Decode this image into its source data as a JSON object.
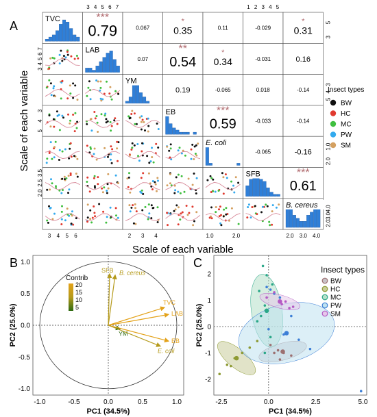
{
  "panel_labels": {
    "a": "A",
    "b": "B",
    "c": "C"
  },
  "colors": {
    "BW": "#111111",
    "HC": "#e03a2f",
    "MC": "#3fbf3f",
    "PW": "#33aaee",
    "SM": "#d4a060",
    "hist": "#2f7fd8",
    "curve": "#d88a9a",
    "star": "#b06a6e",
    "contrib_low": "#2e6b12",
    "contrib_mid": "#b59a1b",
    "contrib_high": "#e3a21a"
  },
  "chart_data": [
    {
      "type": "scatter",
      "subtype": "correlation-matrix",
      "variables": [
        "TVC",
        "LAB",
        "YM",
        "EB",
        "E. coli",
        "SFB",
        "B. cereus"
      ],
      "diag_labels": [
        "TVC",
        "LAB",
        "YM",
        "EB",
        "E. coli",
        "SFB",
        "B. cereus"
      ],
      "xlabel": "Scale of each variable",
      "ylabel": "Scale of each variable",
      "top_ticks": [
        [
          "3",
          "4",
          "5",
          "6",
          "7"
        ],
        [],
        [
          "1",
          "2",
          "3",
          "4",
          "5"
        ],
        [],
        [
          "2.0",
          "3.0",
          "4.0"
        ]
      ],
      "right_ticks": [
        [
          "5",
          "3"
        ],
        [
          "3",
          "4",
          "5"
        ],
        [
          "1.0",
          "2.0"
        ],
        [],
        [
          "3.0",
          "4.0"
        ],
        [],
        []
      ],
      "right_ticks_v": [
        [
          "5",
          "3"
        ],
        [],
        [
          "3",
          "4",
          "5"
        ],
        [],
        [
          "1.0",
          "2.0"
        ],
        [],
        [
          "4.0",
          "3.0",
          "2.0"
        ]
      ],
      "left_ticks": [
        [],
        [
          "7",
          "6",
          "5",
          "4",
          "3"
        ],
        [],
        [
          "3",
          "4",
          "5"
        ],
        [],
        [
          "3.5",
          "2.5",
          "2.0"
        ],
        []
      ],
      "bottom_ticks": [
        [
          "3",
          "4",
          "5",
          "6"
        ],
        [],
        [
          "2",
          "3",
          "4"
        ],
        [],
        [
          "1.0",
          "2.0"
        ],
        [],
        [
          "2.0",
          "3.0",
          "4.0"
        ]
      ],
      "correlations": [
        {
          "row": 0,
          "col": 1,
          "r": "0.79",
          "sig": "***"
        },
        {
          "row": 0,
          "col": 2,
          "r": "0.067",
          "sig": ""
        },
        {
          "row": 0,
          "col": 3,
          "r": "0.35",
          "sig": "*"
        },
        {
          "row": 0,
          "col": 4,
          "r": "0.11",
          "sig": ""
        },
        {
          "row": 0,
          "col": 5,
          "r": "-0.029",
          "sig": ""
        },
        {
          "row": 0,
          "col": 6,
          "r": "0.31",
          "sig": "*"
        },
        {
          "row": 1,
          "col": 2,
          "r": "0.07",
          "sig": ""
        },
        {
          "row": 1,
          "col": 3,
          "r": "0.54",
          "sig": "**"
        },
        {
          "row": 1,
          "col": 4,
          "r": "0.34",
          "sig": "*"
        },
        {
          "row": 1,
          "col": 5,
          "r": "-0.031",
          "sig": ""
        },
        {
          "row": 1,
          "col": 6,
          "r": "0.16",
          "sig": ""
        },
        {
          "row": 2,
          "col": 3,
          "r": "0.19",
          "sig": ""
        },
        {
          "row": 2,
          "col": 4,
          "r": "-0.065",
          "sig": ""
        },
        {
          "row": 2,
          "col": 5,
          "r": "0.018",
          "sig": ""
        },
        {
          "row": 2,
          "col": 6,
          "r": "-0.14",
          "sig": ""
        },
        {
          "row": 3,
          "col": 4,
          "r": "0.59",
          "sig": "***"
        },
        {
          "row": 3,
          "col": 5,
          "r": "-0.033",
          "sig": ""
        },
        {
          "row": 3,
          "col": 6,
          "r": "-0.14",
          "sig": ""
        },
        {
          "row": 4,
          "col": 5,
          "r": "-0.065",
          "sig": ""
        },
        {
          "row": 4,
          "col": 6,
          "r": "-0.16",
          "sig": ""
        },
        {
          "row": 5,
          "col": 6,
          "r": "0.61",
          "sig": "***"
        }
      ],
      "histograms": [
        [
          1,
          2,
          3,
          5,
          8,
          10,
          9,
          6,
          3,
          2
        ],
        [
          2,
          2,
          1,
          3,
          5,
          7,
          9,
          10,
          6,
          3
        ],
        [
          1,
          3,
          9,
          10,
          5,
          3,
          1,
          0,
          0,
          0
        ],
        [
          10,
          5,
          3,
          2,
          1,
          1,
          1,
          0,
          1,
          0
        ],
        [
          10,
          1,
          0,
          0,
          0,
          0,
          0,
          0,
          0,
          1
        ],
        [
          5,
          8,
          9,
          10,
          8,
          7,
          4,
          2,
          1,
          1
        ],
        [
          7,
          6,
          4,
          3,
          2,
          2,
          4,
          5,
          6,
          7
        ]
      ],
      "legend": {
        "title": "Insect types",
        "items": [
          "BW",
          "HC",
          "MC",
          "PW",
          "SM"
        ]
      }
    },
    {
      "type": "scatter",
      "subtype": "pca-variable-biplot",
      "xlabel": "PC1 (34.5%)",
      "ylabel": "PC2 (25.0%)",
      "xlim": [
        -1.1,
        1.1
      ],
      "ylim": [
        -1.1,
        1.1
      ],
      "xticks": [
        "-1.0",
        "-0.5",
        "0.0",
        "0.5",
        "1.0"
      ],
      "yticks": [
        "1.0",
        "0.5",
        "0.0",
        "-0.5",
        "-1.0"
      ],
      "legend_title": "Contrib",
      "legend_ticks": [
        "20",
        "15",
        "10",
        "5"
      ],
      "vectors": [
        {
          "label": "SFB",
          "x": 0.02,
          "y": 0.81,
          "contrib": 14
        },
        {
          "label": "B. cereus",
          "x": 0.1,
          "y": 0.79,
          "contrib": 13
        },
        {
          "label": "TVC",
          "x": 0.82,
          "y": 0.28,
          "contrib": 18
        },
        {
          "label": "LAB",
          "x": 0.88,
          "y": 0.17,
          "contrib": 19
        },
        {
          "label": "YM",
          "x": 0.17,
          "y": -0.06,
          "contrib": 3
        },
        {
          "label": "EB",
          "x": 0.88,
          "y": -0.25,
          "contrib": 17
        },
        {
          "label": "E. coli",
          "x": 0.76,
          "y": -0.33,
          "contrib": 13
        }
      ]
    },
    {
      "type": "scatter",
      "subtype": "pca-individuals",
      "xlabel": "PC1 (34.5%)",
      "ylabel": "PC2 (25.0%)",
      "xlim": [
        -2.9,
        5.2
      ],
      "ylim": [
        -2.6,
        2.7
      ],
      "xticks": [
        "-2.5",
        "0.0",
        "2.5",
        "5.0"
      ],
      "xticks_v": [
        -2.5,
        0.0,
        2.5,
        5.0
      ],
      "yticks": [
        "2",
        "1",
        "0",
        "-1",
        "-2"
      ],
      "yticks_v": [
        2,
        1,
        0,
        -1,
        -2
      ],
      "legend": {
        "title": "Insect types",
        "items": [
          "BW",
          "HC",
          "MC",
          "PW",
          "SM"
        ]
      },
      "groups": [
        {
          "name": "BW",
          "fill": "#c8c2c6",
          "ellipse": {
            "cx": 0.75,
            "cy": -0.95,
            "rx": 1.3,
            "ry": 0.32,
            "angle": -15
          },
          "points": [
            [
              0.1,
              -0.7
            ],
            [
              0.5,
              -0.9
            ],
            [
              0.8,
              -1.0
            ],
            [
              1.2,
              -1.1
            ],
            [
              0.6,
              -1.25
            ],
            [
              0.3,
              -1.0
            ]
          ],
          "centroid": [
            0.75,
            -0.95
          ]
        },
        {
          "name": "HC",
          "fill": "#c9cc9a",
          "ellipse": {
            "cx": -1.7,
            "cy": -1.2,
            "rx": 1.25,
            "ry": 0.35,
            "angle": 40
          },
          "points": [
            [
              -2.6,
              -1.8
            ],
            [
              -2.2,
              -1.45
            ],
            [
              -1.8,
              -1.2
            ],
            [
              -1.4,
              -1.0
            ],
            [
              -1.0,
              -0.8
            ],
            [
              -0.6,
              -0.55
            ],
            [
              -2.0,
              -1.5
            ]
          ],
          "centroid": [
            -1.7,
            -1.2
          ]
        },
        {
          "name": "MC",
          "fill": "#b5e0c9",
          "ellipse": {
            "cx": -0.1,
            "cy": 0.6,
            "rx": 1.95,
            "ry": 0.58,
            "angle": 82
          },
          "points": [
            [
              -0.3,
              2.3
            ],
            [
              -0.1,
              1.95
            ],
            [
              0.2,
              1.6
            ],
            [
              -0.5,
              1.35
            ],
            [
              -0.2,
              0.8
            ],
            [
              -0.4,
              0.4
            ],
            [
              -0.6,
              0.2
            ],
            [
              0.1,
              -0.4
            ],
            [
              -0.2,
              -1.0
            ]
          ],
          "centroid": [
            -0.1,
            0.6
          ]
        },
        {
          "name": "PW",
          "fill": "#bfe2f0",
          "ellipse": {
            "cx": 0.95,
            "cy": -0.25,
            "rx": 2.6,
            "ry": 1.1,
            "angle": -15
          },
          "points": [
            [
              -0.1,
              1.5
            ],
            [
              0.3,
              1.25
            ],
            [
              0.1,
              1.4
            ],
            [
              0.6,
              1.1
            ],
            [
              1.2,
              0.4
            ],
            [
              0.8,
              -0.3
            ],
            [
              1.6,
              -0.5
            ],
            [
              2.2,
              -0.85
            ],
            [
              0.0,
              -0.1
            ],
            [
              4.9,
              -2.45
            ]
          ],
          "centroid": [
            0.95,
            -0.25
          ]
        },
        {
          "name": "SM",
          "fill": "#e6c8ea",
          "ellipse": {
            "cx": 0.6,
            "cy": 0.95,
            "rx": 1.1,
            "ry": 0.25,
            "angle": 15
          },
          "points": [
            [
              -0.1,
              1.1
            ],
            [
              0.3,
              1.3
            ],
            [
              0.7,
              0.85
            ],
            [
              1.3,
              0.75
            ],
            [
              1.1,
              0.7
            ],
            [
              0.9,
              0.95
            ]
          ],
          "centroid": [
            0.6,
            0.95
          ]
        }
      ],
      "point_colors": {
        "BW": "#9c6f70",
        "HC": "#8d9a33",
        "MC": "#2aa788",
        "PW": "#3d7fd6",
        "SM": "#b45ac4"
      }
    }
  ]
}
